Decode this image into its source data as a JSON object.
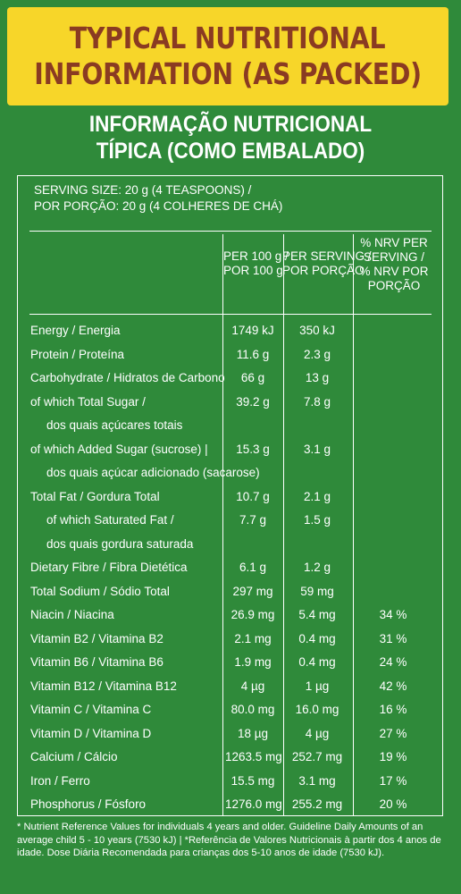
{
  "banner": {
    "line1": "TYPICAL NUTRITIONAL",
    "line2": "INFORMATION (AS PACKED)"
  },
  "pt_title": {
    "line1": "INFORMAÇÃO NUTRICIONAL",
    "line2": "TÍPICA (COMO EMBALADO)"
  },
  "serving": {
    "line1": "SERVING SIZE: 20 g  (4 TEASPOONS) /",
    "line2": "POR PORÇÃO: 20 g  (4 COLHERES DE CHÁ)"
  },
  "columns": {
    "per100_l1": "PER 100 g /",
    "per100_l2": "POR 100 g",
    "perserv_l1": "PER SERVING /",
    "perserv_l2": "POR PORÇÃO",
    "nrv_l1": "% NRV PER",
    "nrv_l2": "SERVING /",
    "nrv_l3": "% NRV POR",
    "nrv_l4": "PORÇÃO"
  },
  "rows": [
    {
      "label": "Energy / Energia",
      "per100": "1749 kJ",
      "serving": "350 kJ",
      "nrv": ""
    },
    {
      "label": "Protein / Proteína",
      "per100": "11.6 g",
      "serving": "2.3 g",
      "nrv": ""
    },
    {
      "label": "Carbohydrate / Hidratos de Carbono",
      "per100": "66 g",
      "serving": "13 g",
      "nrv": ""
    },
    {
      "label": "of which Total Sugar /",
      "per100": "39.2 g",
      "serving": "7.8 g",
      "nrv": ""
    },
    {
      "label": "dos quais açúcares totais",
      "per100": "",
      "serving": "",
      "nrv": ""
    },
    {
      "label": "of which Added Sugar (sucrose) |",
      "per100": "15.3 g",
      "serving": "3.1 g",
      "nrv": ""
    },
    {
      "label": "dos quais açúcar adicionado (sacarose)",
      "per100": "",
      "serving": "",
      "nrv": ""
    },
    {
      "label": "Total Fat / Gordura Total",
      "per100": "10.7 g",
      "serving": "2.1 g",
      "nrv": ""
    },
    {
      "label": "of which Saturated Fat /",
      "per100": "7.7 g",
      "serving": "1.5 g",
      "nrv": ""
    },
    {
      "label": "dos quais gordura saturada",
      "per100": "",
      "serving": "",
      "nrv": ""
    },
    {
      "label": "Dietary Fibre / Fibra Dietética",
      "per100": "6.1 g",
      "serving": "1.2 g",
      "nrv": ""
    },
    {
      "label": "Total Sodium / Sódio Total",
      "per100": "297 mg",
      "serving": "59 mg",
      "nrv": ""
    },
    {
      "label": "Niacin / Niacina",
      "per100": "26.9 mg",
      "serving": "5.4 mg",
      "nrv": "34 %"
    },
    {
      "label": "Vitamin B2 / Vitamina B2",
      "per100": "2.1 mg",
      "serving": "0.4 mg",
      "nrv": "31 %"
    },
    {
      "label": "Vitamin B6 / Vitamina B6",
      "per100": "1.9 mg",
      "serving": "0.4 mg",
      "nrv": "24 %"
    },
    {
      "label": "Vitamin B12 / Vitamina B12",
      "per100": "4 µg",
      "serving": "1 µg",
      "nrv": "42 %"
    },
    {
      "label": "Vitamin C / Vitamina C",
      "per100": "80.0 mg",
      "serving": "16.0 mg",
      "nrv": "16 %"
    },
    {
      "label": "Vitamin D / Vitamina D",
      "per100": "18 µg",
      "serving": "4 µg",
      "nrv": "27 %"
    },
    {
      "label": "Calcium / Cálcio",
      "per100": "1263.5 mg",
      "serving": "252.7 mg",
      "nrv": "19 %"
    },
    {
      "label": "Iron / Ferro",
      "per100": "15.5 mg",
      "serving": "3.1 mg",
      "nrv": "17 %"
    },
    {
      "label": "Phosphorus / Fósforo",
      "per100": "1276.0 mg",
      "serving": "255.2 mg",
      "nrv": "20 %"
    }
  ],
  "footnote": "* Nutrient Reference Values for individuals 4 years and older. Guideline Daily Amounts of an average child 5 - 10 years (7530 kJ) | *Referência de Valores Nutricionais à partir dos 4 anos de idade. Dose Diária Recomendada para crianças dos 5-10 anos de idade (7530 kJ).",
  "colors": {
    "background": "#2f8a3a",
    "banner": "#f7d629",
    "banner_text": "#8a3b22",
    "text": "#ffffff"
  }
}
